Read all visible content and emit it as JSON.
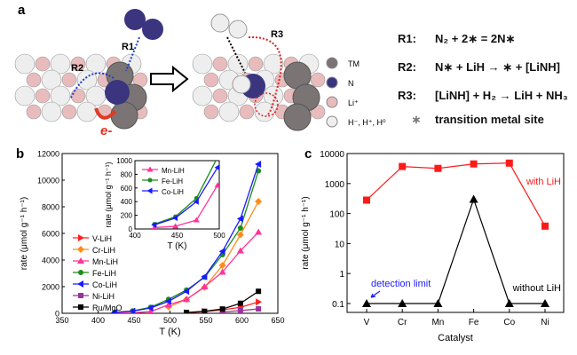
{
  "panel_a": {
    "label": "a",
    "arrow_labels": [
      "R1",
      "R2",
      "R3"
    ],
    "electron_label": "e-",
    "legend": [
      {
        "label": "TM",
        "color": "#7a7574"
      },
      {
        "label": "N",
        "color": "#3b3580"
      },
      {
        "label": "Li⁺",
        "color": "#e8bcbc"
      },
      {
        "label": "H⁻, H⁺, H⁰",
        "color": "#eeeeee"
      }
    ],
    "equations": [
      {
        "label": "R1:",
        "text": "N₂ + 2∗ = 2N∗"
      },
      {
        "label": "R2:",
        "text": "N∗ + LiH → ∗ + [LiNH]"
      },
      {
        "label": "R3:",
        "text": "[LiNH] + H₂ → LiH + NH₃"
      }
    ],
    "site_symbol": "∗",
    "site_label": "transition metal site"
  },
  "chart_data": [
    {
      "panel": "b",
      "type": "line",
      "xlabel": "T (K)",
      "ylabel": "rate (μmol g⁻¹ h⁻¹)",
      "xlim": [
        350,
        650
      ],
      "ylim": [
        0,
        12000
      ],
      "xticks": [
        350,
        400,
        450,
        500,
        550,
        600,
        650
      ],
      "yticks": [
        0,
        2000,
        4000,
        6000,
        8000,
        10000,
        12000
      ],
      "legend_position": "middle-left",
      "series": [
        {
          "name": "V-LiH",
          "color": "#ff2020",
          "marker": "triangle-right",
          "x": [
            523,
            548,
            573,
            598,
            623
          ],
          "y": [
            40,
            130,
            260,
            450,
            850
          ]
        },
        {
          "name": "Cr-LiH",
          "color": "#ff8c1a",
          "marker": "diamond",
          "x": [
            498,
            523,
            548,
            573,
            598,
            623
          ],
          "y": [
            480,
            1050,
            1950,
            3600,
            5900,
            8400
          ]
        },
        {
          "name": "Mn-LiH",
          "color": "#ff3399",
          "marker": "triangle-up",
          "x": [
            423,
            448,
            473,
            498,
            523,
            548,
            573,
            598,
            623
          ],
          "y": [
            20,
            40,
            130,
            640,
            1050,
            2000,
            3100,
            4700,
            6100
          ]
        },
        {
          "name": "Fe-LiH",
          "color": "#1a8c1a",
          "marker": "circle",
          "x": [
            423,
            448,
            473,
            498,
            523,
            548,
            573,
            598,
            623
          ],
          "y": [
            70,
            180,
            450,
            1050,
            1750,
            2700,
            4400,
            6400,
            10700
          ]
        },
        {
          "name": "Co-LiH",
          "color": "#1a1aff",
          "marker": "triangle-left",
          "x": [
            423,
            448,
            473,
            498,
            523,
            548,
            573,
            598,
            623
          ],
          "y": [
            60,
            160,
            400,
            900,
            1650,
            2750,
            4650,
            7100,
            11200
          ]
        },
        {
          "name": "Ni-LiH",
          "color": "#993399",
          "marker": "square",
          "x": [
            573,
            598,
            623
          ],
          "y": [
            100,
            200,
            330
          ]
        },
        {
          "name": "Ru/MgO",
          "color": "#000000",
          "marker": "square",
          "x": [
            523,
            548,
            573,
            598,
            623
          ],
          "y": [
            60,
            150,
            320,
            750,
            1650
          ]
        }
      ]
    },
    {
      "panel": "b-inset",
      "type": "line",
      "xlabel": "T (K)",
      "ylabel": "rate (μmol g⁻¹ h⁻¹)",
      "xlim": [
        400,
        500
      ],
      "ylim": [
        0,
        1000
      ],
      "xticks": [
        400,
        450,
        500
      ],
      "yticks": [
        0,
        200,
        400,
        600,
        800,
        1000
      ],
      "legend_position": "top-left",
      "series": [
        {
          "name": "Mn-LiH",
          "color": "#ff3399",
          "marker": "triangle-up",
          "x": [
            423,
            448,
            473,
            498
          ],
          "y": [
            20,
            40,
            130,
            640
          ]
        },
        {
          "name": "Fe-LiH",
          "color": "#1a8c1a",
          "marker": "circle",
          "x": [
            423,
            448,
            473,
            498
          ],
          "y": [
            70,
            180,
            450,
            1050
          ]
        },
        {
          "name": "Co-LiH",
          "color": "#1a1aff",
          "marker": "triangle-left",
          "x": [
            423,
            448,
            473,
            498
          ],
          "y": [
            60,
            160,
            400,
            900
          ]
        }
      ]
    },
    {
      "panel": "c",
      "type": "line",
      "xlabel": "Catalyst",
      "ylabel": "rate (μmol g⁻¹ h⁻¹)",
      "yscale": "log",
      "ylim": [
        0.1,
        10000
      ],
      "yticks": [
        "0.1",
        "1",
        "10",
        "100",
        "1000",
        "10000"
      ],
      "categories": [
        "V",
        "Cr",
        "Mn",
        "Fe",
        "Co",
        "Ni"
      ],
      "series": [
        {
          "name": "with LiH",
          "color": "#ff1a1a",
          "marker": "square",
          "values": [
            280,
            3700,
            3200,
            4500,
            4800,
            38
          ]
        },
        {
          "name": "without LiH",
          "color": "#000000",
          "marker": "triangle-up",
          "values": [
            0.1,
            0.1,
            0.1,
            300,
            0.1,
            0.1
          ]
        }
      ],
      "annotation": {
        "text": "detection limit",
        "color": "#1a1aff"
      }
    }
  ],
  "panel_labels": {
    "b": "b",
    "c": "c"
  }
}
